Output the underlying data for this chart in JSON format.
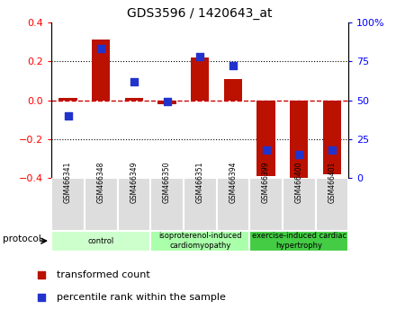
{
  "title": "GDS3596 / 1420643_at",
  "samples": [
    "GSM466341",
    "GSM466348",
    "GSM466349",
    "GSM466350",
    "GSM466351",
    "GSM466394",
    "GSM466399",
    "GSM466400",
    "GSM466401"
  ],
  "transformed_count": [
    0.01,
    0.31,
    0.01,
    -0.02,
    0.22,
    0.11,
    -0.39,
    -0.41,
    -0.38
  ],
  "percentile_rank": [
    40,
    83,
    62,
    49,
    78,
    72,
    18,
    15,
    18
  ],
  "ylim": [
    -0.4,
    0.4
  ],
  "yticks_left": [
    -0.4,
    -0.2,
    0.0,
    0.2,
    0.4
  ],
  "yticks_right_vals": [
    0,
    25,
    50,
    75,
    100
  ],
  "group_ranges": [
    [
      0,
      2
    ],
    [
      3,
      5
    ],
    [
      6,
      8
    ]
  ],
  "group_labels": [
    "control",
    "isoproterenol-induced\ncardiomyopathy",
    "exercise-induced cardiac\nhypertrophy"
  ],
  "group_colors": [
    "#ccffcc",
    "#aaffaa",
    "#44cc44"
  ],
  "bar_color": "#bb1100",
  "dot_color": "#2233cc",
  "zero_line_color": "#cc0000",
  "dot_size": 35,
  "bar_width": 0.55,
  "bg_color": "#ffffff",
  "legend_labels": [
    "transformed count",
    "percentile rank within the sample"
  ],
  "legend_colors": [
    "#bb1100",
    "#2233cc"
  ]
}
